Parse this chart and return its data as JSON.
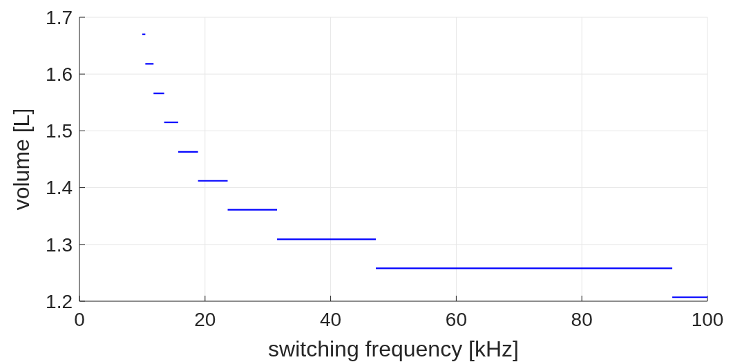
{
  "chart_data": {
    "type": "line",
    "xlabel": "switching frequency [kHz]",
    "ylabel": "volume [L]",
    "xlim": [
      0,
      100
    ],
    "ylim": [
      1.2,
      1.7
    ],
    "xticks": [
      0,
      20,
      40,
      60,
      80,
      100
    ],
    "yticks": [
      1.2,
      1.3,
      1.4,
      1.5,
      1.6,
      1.7
    ],
    "grid": true,
    "marker": "none",
    "line_style": "solid",
    "series": [
      {
        "color": "#0000ff",
        "x": [
          10,
          10.49
        ],
        "values": [
          1.67,
          1.67
        ]
      },
      {
        "color": "#0000ff",
        "x": [
          10.49,
          11.8
        ],
        "values": [
          1.618,
          1.618
        ]
      },
      {
        "color": "#0000ff",
        "x": [
          11.8,
          13.49
        ],
        "values": [
          1.566,
          1.566
        ]
      },
      {
        "color": "#0000ff",
        "x": [
          13.49,
          15.73
        ],
        "values": [
          1.515,
          1.515
        ]
      },
      {
        "color": "#0000ff",
        "x": [
          15.73,
          18.88
        ],
        "values": [
          1.463,
          1.463
        ]
      },
      {
        "color": "#0000ff",
        "x": [
          18.88,
          23.6
        ],
        "values": [
          1.412,
          1.412
        ]
      },
      {
        "color": "#0000ff",
        "x": [
          23.6,
          31.47
        ],
        "values": [
          1.361,
          1.361
        ]
      },
      {
        "color": "#0000ff",
        "x": [
          31.47,
          47.2
        ],
        "values": [
          1.309,
          1.309
        ]
      },
      {
        "color": "#0000ff",
        "x": [
          47.2,
          94.4
        ],
        "values": [
          1.258,
          1.258
        ]
      },
      {
        "color": "#0000ff",
        "x": [
          94.4,
          100
        ],
        "values": [
          1.207,
          1.207
        ]
      }
    ]
  }
}
